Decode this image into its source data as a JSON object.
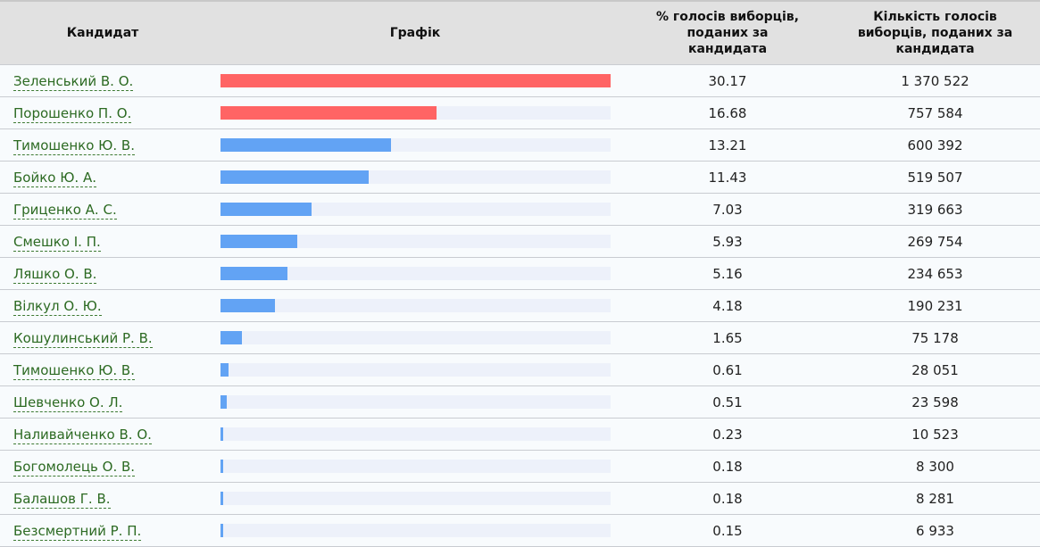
{
  "header": {
    "candidate": "Кандидат",
    "chart": "Графік",
    "percent_line1": "% голосів виборців,",
    "percent_line2": "поданих за",
    "percent_line3": "кандидата",
    "votes_line1": "Кількість голосів",
    "votes_line2": "виборців, поданих за",
    "votes_line3": "кандидата"
  },
  "colors": {
    "top2": "#ff6464",
    "other": "#62a3f4",
    "track": "#edf1fa",
    "link": "#2c6a22",
    "header_bg": "#e1e1e1"
  },
  "rows": [
    {
      "name": "Зеленський В. О.",
      "percent": "30.17",
      "votes": "1 370 522",
      "color": "red"
    },
    {
      "name": "Порошенко П. О.",
      "percent": "16.68",
      "votes": "757 584",
      "color": "red"
    },
    {
      "name": "Тимошенко Ю. В.",
      "percent": "13.21",
      "votes": "600 392",
      "color": "blue"
    },
    {
      "name": "Бойко Ю. А.",
      "percent": "11.43",
      "votes": "519 507",
      "color": "blue"
    },
    {
      "name": "Гриценко А. С.",
      "percent": "7.03",
      "votes": "319 663",
      "color": "blue"
    },
    {
      "name": "Смешко І. П.",
      "percent": "5.93",
      "votes": "269 754",
      "color": "blue"
    },
    {
      "name": "Ляшко О. В.",
      "percent": "5.16",
      "votes": "234 653",
      "color": "blue"
    },
    {
      "name": "Вілкул О. Ю.",
      "percent": "4.18",
      "votes": "190 231",
      "color": "blue"
    },
    {
      "name": "Кошулинський Р. В.",
      "percent": "1.65",
      "votes": "75 178",
      "color": "blue"
    },
    {
      "name": "Тимошенко Ю. В.",
      "percent": "0.61",
      "votes": "28 051",
      "color": "blue"
    },
    {
      "name": "Шевченко О. Л.",
      "percent": "0.51",
      "votes": "23 598",
      "color": "blue"
    },
    {
      "name": "Наливайченко В. О.",
      "percent": "0.23",
      "votes": "10 523",
      "color": "blue"
    },
    {
      "name": "Богомолець О. В.",
      "percent": "0.18",
      "votes": "8 300",
      "color": "blue"
    },
    {
      "name": "Балашов Г. В.",
      "percent": "0.18",
      "votes": "8 281",
      "color": "blue"
    },
    {
      "name": "Безсмертний Р. П.",
      "percent": "0.15",
      "votes": "6 933",
      "color": "blue"
    }
  ],
  "chart_data": {
    "type": "bar",
    "title": "Графік",
    "xlabel": "% голосів виборців, поданих за кандидата",
    "ylabel": "Кандидат",
    "orientation": "horizontal",
    "categories": [
      "Зеленський В. О.",
      "Порошенко П. О.",
      "Тимошенко Ю. В.",
      "Бойко Ю. А.",
      "Гриценко А. С.",
      "Смешко І. П.",
      "Ляшко О. В.",
      "Вілкул О. Ю.",
      "Кошулинський Р. В.",
      "Тимошенко Ю. В.",
      "Шевченко О. Л.",
      "Наливайченко В. О.",
      "Богомолець О. В.",
      "Балашов Г. В.",
      "Безсмертний Р. П."
    ],
    "series": [
      {
        "name": "% голосів виборців",
        "values": [
          30.17,
          16.68,
          13.21,
          11.43,
          7.03,
          5.93,
          5.16,
          4.18,
          1.65,
          0.61,
          0.51,
          0.23,
          0.18,
          0.18,
          0.15
        ]
      },
      {
        "name": "Кількість голосів виборців",
        "values": [
          1370522,
          757584,
          600392,
          519507,
          319663,
          269754,
          234653,
          190231,
          75178,
          28051,
          23598,
          10523,
          8300,
          8281,
          6933
        ]
      }
    ],
    "xlim": [
      0,
      30.17
    ],
    "grid": false,
    "legend": "none"
  }
}
